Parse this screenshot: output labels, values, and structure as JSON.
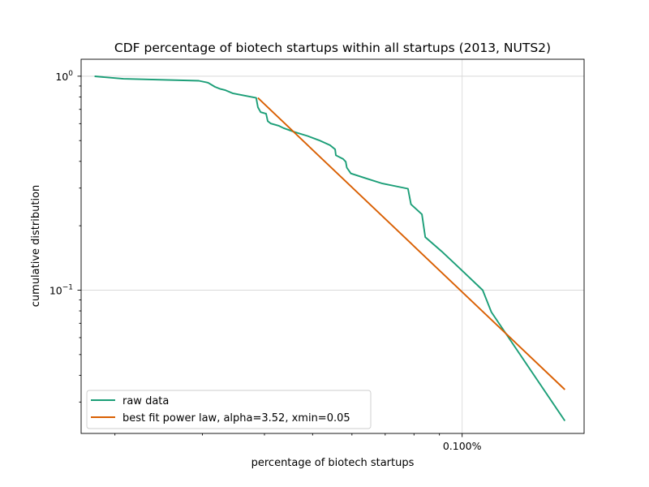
{
  "chart_data": {
    "type": "line",
    "title": "CDF percentage of biotech startups within all startups (2013, NUTS2)",
    "xlabel": "percentage of biotech startups",
    "ylabel": "cumulative distribution",
    "x_scale": "log",
    "y_scale": "log",
    "xlim": [
      0.0171,
      0.176
    ],
    "ylim": [
      0.0214,
      1.2
    ],
    "x_ticks": [
      {
        "value": 0.1,
        "label": "0.100%"
      }
    ],
    "y_ticks": [
      {
        "value": 1,
        "label": "10",
        "exp": "0"
      },
      {
        "value": 0.1,
        "label": "10",
        "exp": "−1"
      }
    ],
    "grid": true,
    "legend_position": "lower-left",
    "series": [
      {
        "name": "raw data",
        "color": "#1b9e77",
        "x": [
          0.0182,
          0.0208,
          0.0295,
          0.0308,
          0.0318,
          0.0326,
          0.0333,
          0.0345,
          0.0385,
          0.0388,
          0.0393,
          0.0403,
          0.0406,
          0.0412,
          0.0428,
          0.0437,
          0.046,
          0.0489,
          0.0515,
          0.0542,
          0.0555,
          0.0557,
          0.0576,
          0.0583,
          0.0586,
          0.0597,
          0.0641,
          0.0691,
          0.0778,
          0.0789,
          0.083,
          0.0843,
          0.0909,
          0.0994,
          0.11,
          0.1145,
          0.161
        ],
        "y": [
          0.999,
          0.972,
          0.952,
          0.932,
          0.892,
          0.872,
          0.862,
          0.832,
          0.792,
          0.716,
          0.679,
          0.668,
          0.617,
          0.601,
          0.586,
          0.572,
          0.548,
          0.525,
          0.502,
          0.476,
          0.455,
          0.427,
          0.41,
          0.398,
          0.374,
          0.351,
          0.333,
          0.315,
          0.298,
          0.252,
          0.226,
          0.177,
          0.152,
          0.125,
          0.1,
          0.079,
          0.0245
        ]
      },
      {
        "name": "best fit power law, alpha=3.52, xmin=0.05",
        "color": "#d95f02",
        "x": [
          0.0388,
          0.161
        ],
        "y": [
          0.792,
          0.0343
        ]
      }
    ]
  }
}
